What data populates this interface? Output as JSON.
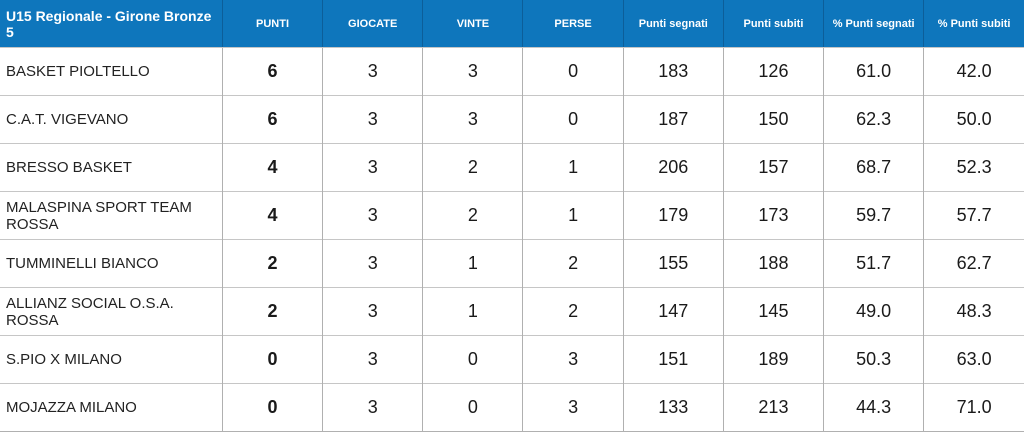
{
  "table": {
    "title": "U15 Regionale - Girone Bronze 5",
    "headers": [
      "PUNTI",
      "GIOCATE",
      "VINTE",
      "PERSE",
      "Punti segnati",
      "Punti subiti",
      "% Punti segnati",
      "% Punti subiti"
    ],
    "rows": [
      {
        "team": "BASKET PIOLTELLO",
        "cells": [
          "6",
          "3",
          "3",
          "0",
          "183",
          "126",
          "61.0",
          "42.0"
        ]
      },
      {
        "team": "C.A.T. VIGEVANO",
        "cells": [
          "6",
          "3",
          "3",
          "0",
          "187",
          "150",
          "62.3",
          "50.0"
        ]
      },
      {
        "team": "BRESSO BASKET",
        "cells": [
          "4",
          "3",
          "2",
          "1",
          "206",
          "157",
          "68.7",
          "52.3"
        ]
      },
      {
        "team": "MALASPINA SPORT TEAM ROSSA",
        "cells": [
          "4",
          "3",
          "2",
          "1",
          "179",
          "173",
          "59.7",
          "57.7"
        ]
      },
      {
        "team": "TUMMINELLI BIANCO",
        "cells": [
          "2",
          "3",
          "1",
          "2",
          "155",
          "188",
          "51.7",
          "62.7"
        ]
      },
      {
        "team": "ALLIANZ SOCIAL O.S.A. ROSSA",
        "cells": [
          "2",
          "3",
          "1",
          "2",
          "147",
          "145",
          "49.0",
          "48.3"
        ]
      },
      {
        "team": "S.PIO X MILANO",
        "cells": [
          "0",
          "3",
          "0",
          "3",
          "151",
          "189",
          "50.3",
          "63.0"
        ]
      },
      {
        "team": "MOJAZZA MILANO",
        "cells": [
          "0",
          "3",
          "0",
          "3",
          "133",
          "213",
          "44.3",
          "71.0"
        ]
      }
    ],
    "colors": {
      "header_bg": "#0e76bc",
      "header_text": "#ffffff",
      "header_divider": "#0c5e99",
      "grid_vertical": "#b0b0b0",
      "grid_horizontal": "#c6c6c6",
      "body_text": "#1a1a1a"
    }
  },
  "chart_data": {
    "type": "table",
    "title": "U15 Regionale - Girone Bronze 5",
    "columns": [
      "U15 Regionale - Girone Bronze 5",
      "PUNTI",
      "GIOCATE",
      "VINTE",
      "PERSE",
      "Punti segnati",
      "Punti subiti",
      "% Punti segnati",
      "% Punti subiti"
    ],
    "rows": [
      [
        "BASKET PIOLTELLO",
        6,
        3,
        3,
        0,
        183,
        126,
        61.0,
        42.0
      ],
      [
        "C.A.T. VIGEVANO",
        6,
        3,
        3,
        0,
        187,
        150,
        62.3,
        50.0
      ],
      [
        "BRESSO BASKET",
        4,
        3,
        2,
        1,
        206,
        157,
        68.7,
        52.3
      ],
      [
        "MALASPINA SPORT TEAM ROSSA",
        4,
        3,
        2,
        1,
        179,
        173,
        59.7,
        57.7
      ],
      [
        "TUMMINELLI BIANCO",
        2,
        3,
        1,
        2,
        155,
        188,
        51.7,
        62.7
      ],
      [
        "ALLIANZ SOCIAL O.S.A. ROSSA",
        2,
        3,
        1,
        2,
        147,
        145,
        49.0,
        48.3
      ],
      [
        "S.PIO X MILANO",
        0,
        3,
        0,
        3,
        151,
        189,
        50.3,
        63.0
      ],
      [
        "MOJAZZA MILANO",
        0,
        3,
        0,
        3,
        133,
        213,
        44.3,
        71.0
      ]
    ]
  }
}
